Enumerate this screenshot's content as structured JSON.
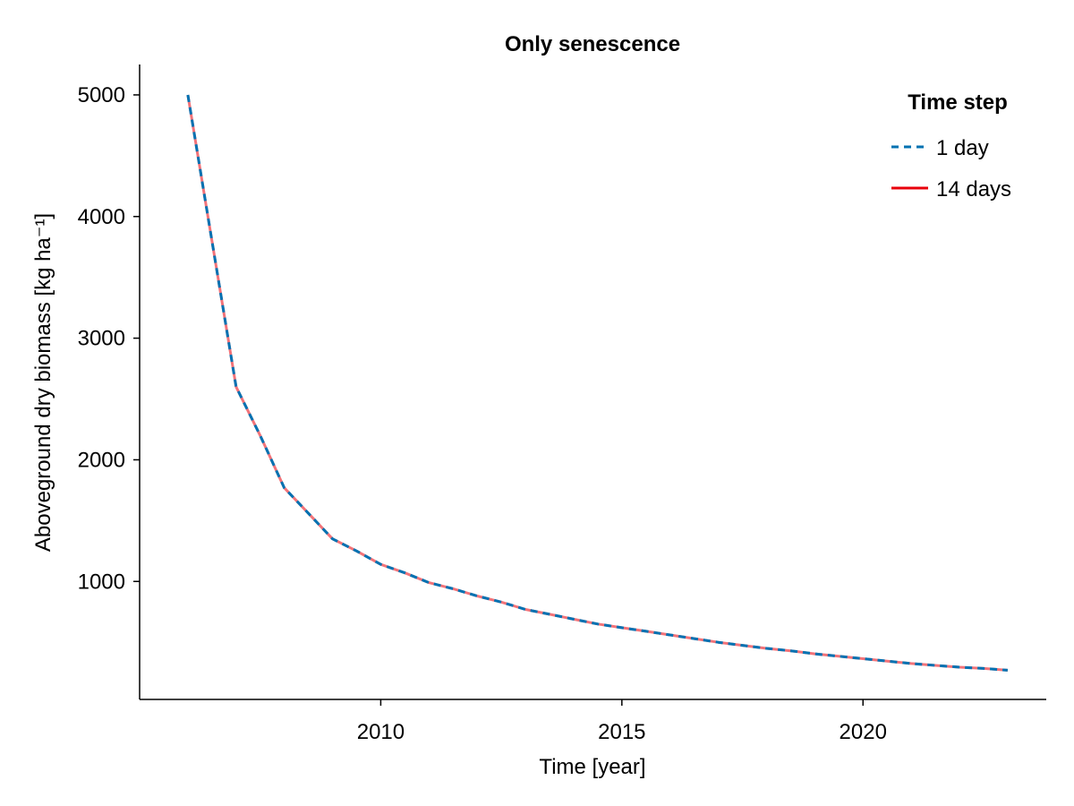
{
  "chart_data": {
    "type": "line",
    "title": "Only senescence",
    "xlabel": "Time [year]",
    "ylabel": "Aboveground dry biomass [kg ha⁻¹]",
    "xlim": [
      2005.0,
      2023.8
    ],
    "ylim": [
      30,
      5250
    ],
    "xticks": [
      2010,
      2015,
      2020
    ],
    "yticks": [
      1000,
      2000,
      3000,
      4000,
      5000
    ],
    "grid": false,
    "legend": {
      "title": "Time step",
      "placement": "top-right",
      "entries": [
        {
          "label": "1 day",
          "color": "#0072B2",
          "style": "dashed"
        },
        {
          "label": "14 days",
          "color": "#E8000B",
          "style": "solid"
        }
      ]
    },
    "series": [
      {
        "name": "1 day",
        "color": "#0072B2",
        "style": "dashed",
        "x": [
          2006.0,
          2006.5,
          2007.0,
          2007.5,
          2008.0,
          2008.5,
          2009.0,
          2009.5,
          2010.0,
          2010.5,
          2011.0,
          2011.5,
          2012.0,
          2012.5,
          2013.0,
          2013.5,
          2014.0,
          2014.5,
          2015.0,
          2015.5,
          2016.0,
          2016.5,
          2017.0,
          2017.5,
          2018.0,
          2018.5,
          2019.0,
          2019.5,
          2020.0,
          2020.5,
          2021.0,
          2021.5,
          2022.0,
          2022.5,
          2023.0
        ],
        "y": [
          5000,
          3800,
          2600,
          2200,
          1770,
          1560,
          1350,
          1250,
          1140,
          1070,
          990,
          940,
          880,
          830,
          770,
          730,
          690,
          650,
          620,
          590,
          560,
          530,
          500,
          475,
          450,
          430,
          405,
          385,
          365,
          345,
          325,
          310,
          295,
          285,
          270
        ]
      },
      {
        "name": "14 days",
        "color": "#E8000B",
        "style": "solid",
        "x": [
          2006.0,
          2006.5,
          2007.0,
          2007.5,
          2008.0,
          2008.5,
          2009.0,
          2009.5,
          2010.0,
          2010.5,
          2011.0,
          2011.5,
          2012.0,
          2012.5,
          2013.0,
          2013.5,
          2014.0,
          2014.5,
          2015.0,
          2015.5,
          2016.0,
          2016.5,
          2017.0,
          2017.5,
          2018.0,
          2018.5,
          2019.0,
          2019.5,
          2020.0,
          2020.5,
          2021.0,
          2021.5,
          2022.0,
          2022.5,
          2023.0
        ],
        "y": [
          5000,
          3800,
          2600,
          2200,
          1770,
          1560,
          1350,
          1250,
          1140,
          1070,
          990,
          940,
          880,
          830,
          770,
          730,
          690,
          650,
          620,
          590,
          560,
          530,
          500,
          475,
          450,
          430,
          405,
          385,
          365,
          345,
          325,
          310,
          295,
          285,
          270
        ]
      }
    ]
  }
}
